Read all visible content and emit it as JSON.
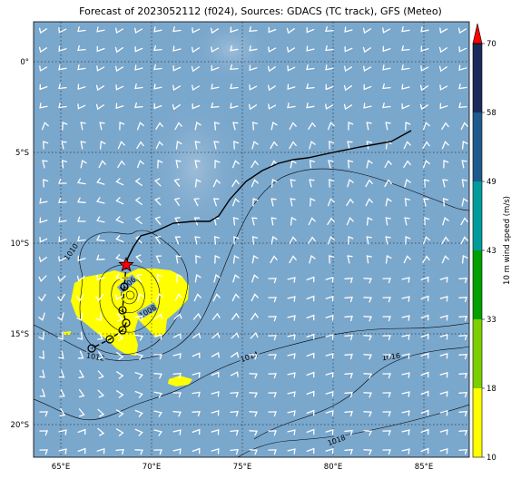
{
  "title": "Forecast of 2023052112 (f024), Sources: GDACS (TC track), GFS (Meteo)",
  "map": {
    "lon_range": [
      63.5,
      87.5
    ],
    "lat_range": [
      -21.8,
      2.2
    ],
    "lon_ticks": [
      {
        "v": 65,
        "label": "65°E"
      },
      {
        "v": 70,
        "label": "70°E"
      },
      {
        "v": 75,
        "label": "75°E"
      },
      {
        "v": 80,
        "label": "80°E"
      },
      {
        "v": 85,
        "label": "85°E"
      }
    ],
    "lat_ticks": [
      {
        "v": 0,
        "label": "0°"
      },
      {
        "v": -5,
        "label": "5°S"
      },
      {
        "v": -10,
        "label": "10°S"
      },
      {
        "v": -15,
        "label": "15°S"
      },
      {
        "v": -20,
        "label": "20°S"
      }
    ],
    "ocean_color": "#7aa7cc",
    "high_wind_color": "#ffff00",
    "track_color": "#000000",
    "storm_marker_color": "#ff0000"
  },
  "isobar_labels": [
    {
      "text": "1010",
      "lon": 65.6,
      "lat": -10.5,
      "rot": -55
    },
    {
      "text": "1006",
      "lon": 68.7,
      "lat": -12.3,
      "rot": -40
    },
    {
      "text": "1008",
      "lon": 69.8,
      "lat": -13.8,
      "rot": -30
    },
    {
      "text": "1012",
      "lon": 66.9,
      "lat": -16.3,
      "rot": 10
    },
    {
      "text": "1014",
      "lon": 75.4,
      "lat": -16.3,
      "rot": -20
    },
    {
      "text": "1016",
      "lon": 83.2,
      "lat": -16.3,
      "rot": -8
    },
    {
      "text": "1018",
      "lon": 80.2,
      "lat": -20.9,
      "rot": -20
    }
  ],
  "track": {
    "past": [
      [
        84.3,
        -3.8
      ],
      [
        83.2,
        -4.4
      ],
      [
        81.5,
        -4.7
      ],
      [
        80.0,
        -5.0
      ],
      [
        78.6,
        -5.3
      ],
      [
        77.8,
        -5.4
      ],
      [
        77.0,
        -5.6
      ],
      [
        76.1,
        -6.0
      ],
      [
        75.2,
        -6.6
      ],
      [
        74.3,
        -7.6
      ],
      [
        73.7,
        -8.5
      ],
      [
        73.2,
        -8.8
      ],
      [
        72.3,
        -8.8
      ],
      [
        71.2,
        -8.9
      ],
      [
        70.1,
        -9.4
      ],
      [
        69.4,
        -9.6
      ],
      [
        69.0,
        -10.2
      ],
      [
        68.7,
        -10.8
      ],
      [
        68.6,
        -11.2
      ]
    ],
    "storm": {
      "lon": 68.6,
      "lat": -11.2
    },
    "forecast": [
      [
        68.5,
        -12.4
      ],
      [
        68.4,
        -13.7
      ],
      [
        68.6,
        -14.4
      ],
      [
        68.4,
        -14.8
      ],
      [
        67.7,
        -15.3
      ],
      [
        66.7,
        -15.8
      ]
    ]
  },
  "colorbar": {
    "label": "10 m wind speed (m/s)",
    "bounds": [
      10,
      18,
      33,
      43,
      49,
      58,
      70
    ],
    "colors": [
      "#ffff00",
      "#7ccf00",
      "#00a000",
      "#009c9c",
      "#1f5a8c",
      "#1a2a5a"
    ],
    "extend_color": "#ff0000"
  }
}
